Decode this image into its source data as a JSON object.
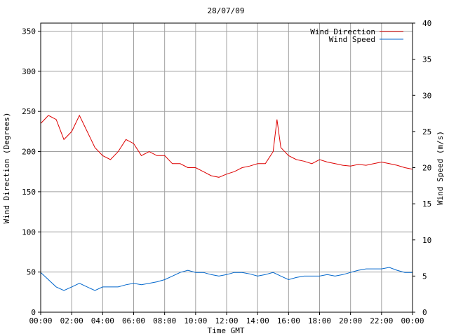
{
  "chart_data": {
    "type": "line",
    "title": "28/07/09",
    "xlabel": "Time GMT",
    "ylabel_left": "Wind Direction (Degrees)",
    "ylabel_right": "Wind Speed (m/s)",
    "x_ticks": [
      "00:00",
      "02:00",
      "04:00",
      "06:00",
      "08:00",
      "10:00",
      "12:00",
      "14:00",
      "16:00",
      "18:00",
      "20:00",
      "22:00",
      "00:00"
    ],
    "xlim_hours": [
      0,
      24
    ],
    "ylim_left": [
      0,
      360
    ],
    "yticks_left": [
      0,
      50,
      100,
      150,
      200,
      250,
      300,
      350
    ],
    "ylim_right": [
      0,
      40
    ],
    "yticks_right": [
      0,
      5,
      10,
      15,
      20,
      25,
      30,
      35,
      40
    ],
    "grid": true,
    "legend_position": "top-right",
    "series": [
      {
        "name": "Wind Direction",
        "axis": "left",
        "color": "#dd0000",
        "x_hours": [
          0,
          0.5,
          1,
          1.5,
          2,
          2.5,
          3,
          3.5,
          4,
          4.5,
          5,
          5.5,
          6,
          6.5,
          7,
          7.5,
          8,
          8.5,
          9,
          9.5,
          10,
          10.5,
          11,
          11.5,
          12,
          12.5,
          13,
          13.5,
          14,
          14.5,
          15,
          15.25,
          15.5,
          16,
          16.5,
          17,
          17.5,
          18,
          18.5,
          19,
          19.5,
          20,
          20.5,
          21,
          21.5,
          22,
          22.5,
          23,
          23.5,
          24
        ],
        "values": [
          235,
          245,
          240,
          215,
          225,
          245,
          225,
          205,
          195,
          190,
          200,
          215,
          210,
          195,
          200,
          195,
          195,
          185,
          185,
          180,
          180,
          175,
          170,
          168,
          172,
          175,
          180,
          182,
          185,
          185,
          200,
          240,
          205,
          195,
          190,
          188,
          185,
          190,
          187,
          185,
          183,
          182,
          184,
          183,
          185,
          187,
          185,
          183,
          180,
          178
        ]
      },
      {
        "name": "Wind Speed",
        "axis": "right",
        "color": "#0066cc",
        "x_hours": [
          0,
          0.5,
          1,
          1.5,
          2,
          2.5,
          3,
          3.5,
          4,
          4.5,
          5,
          5.5,
          6,
          6.5,
          7,
          7.5,
          8,
          8.5,
          9,
          9.5,
          10,
          10.5,
          11,
          11.5,
          12,
          12.5,
          13,
          13.5,
          14,
          14.5,
          15,
          15.5,
          16,
          16.5,
          17,
          17.5,
          18,
          18.5,
          19,
          19.5,
          20,
          20.5,
          21,
          21.5,
          22,
          22.5,
          23,
          23.5,
          24
        ],
        "values": [
          5.5,
          4.5,
          3.5,
          3.0,
          3.5,
          4.0,
          3.5,
          3.0,
          3.5,
          3.5,
          3.5,
          3.8,
          4.0,
          3.8,
          4.0,
          4.2,
          4.5,
          5.0,
          5.5,
          5.8,
          5.5,
          5.5,
          5.2,
          5.0,
          5.2,
          5.5,
          5.5,
          5.3,
          5.0,
          5.2,
          5.5,
          5.0,
          4.5,
          4.8,
          5.0,
          5.0,
          5.0,
          5.2,
          5.0,
          5.2,
          5.5,
          5.8,
          6.0,
          6.0,
          6.0,
          6.2,
          5.8,
          5.5,
          5.5
        ]
      }
    ]
  }
}
